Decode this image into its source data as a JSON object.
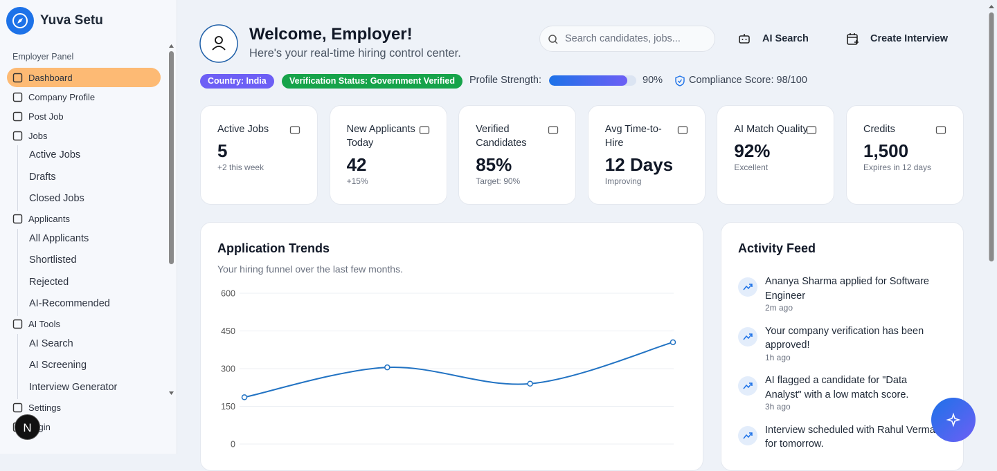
{
  "sidebar": {
    "brand": "Yuva Setu",
    "section": "Employer Panel",
    "items": [
      {
        "label": "Dashboard",
        "active": true
      },
      {
        "label": "Company Profile"
      },
      {
        "label": "Post Job"
      },
      {
        "label": "Jobs",
        "children": [
          "Active Jobs",
          "Drafts",
          "Closed Jobs"
        ]
      },
      {
        "label": "Applicants",
        "children": [
          "All Applicants",
          "Shortlisted",
          "Rejected",
          "AI-Recommended"
        ]
      },
      {
        "label": "AI Tools",
        "children": [
          "AI Search",
          "AI Screening",
          "Interview Generator"
        ]
      },
      {
        "label": "Settings"
      },
      {
        "label": "Login"
      }
    ]
  },
  "header": {
    "title": "Welcome, Employer!",
    "subtitle": "Here's your real-time hiring control center.",
    "search_placeholder": "Search candidates, jobs...",
    "actions": [
      "AI Search",
      "Create Interview"
    ]
  },
  "status": {
    "country": "Country: India",
    "verification": "Verification Status: Government Verified",
    "profile_strength_label": "Profile Strength:",
    "profile_strength": {
      "value": 90,
      "label": "90%"
    },
    "compliance": "Compliance Score: 98/100"
  },
  "stats": [
    {
      "title": "Active Jobs",
      "value": "5",
      "note": "+2 this week"
    },
    {
      "title": "New Applicants Today",
      "value": "42",
      "note": "+15%"
    },
    {
      "title": "Verified Candidates",
      "value": "85%",
      "note": "Target: 90%"
    },
    {
      "title": "Avg Time-to-Hire",
      "value": "12 Days",
      "note": "Improving"
    },
    {
      "title": "AI Match Quality",
      "value": "92%",
      "note": "Excellent"
    },
    {
      "title": "Credits",
      "value": "1,500",
      "note": "Expires in 12 days"
    }
  ],
  "chart_data": {
    "type": "line",
    "title": "Application Trends",
    "subtitle": "Your hiring funnel over the last few months.",
    "categories": [
      null,
      null,
      null,
      null
    ],
    "values": [
      186,
      305,
      240,
      405
    ],
    "color": "#2273c3",
    "ylim": [
      0,
      600
    ],
    "yticks": [
      0,
      150,
      300,
      450,
      600
    ],
    "grid": true
  },
  "activity": {
    "title": "Activity Feed",
    "items": [
      {
        "text": "Ananya Sharma applied for Software Engineer",
        "time": "2m ago"
      },
      {
        "text": "Your company verification has been approved!",
        "time": "1h ago"
      },
      {
        "text": "AI flagged a candidate for \"Data Analyst\" with a low match score.",
        "time": "3h ago"
      },
      {
        "text": "Interview scheduled with Rahul Verma for tomorrow."
      }
    ]
  },
  "overlays": {
    "dev_badge": "N"
  }
}
